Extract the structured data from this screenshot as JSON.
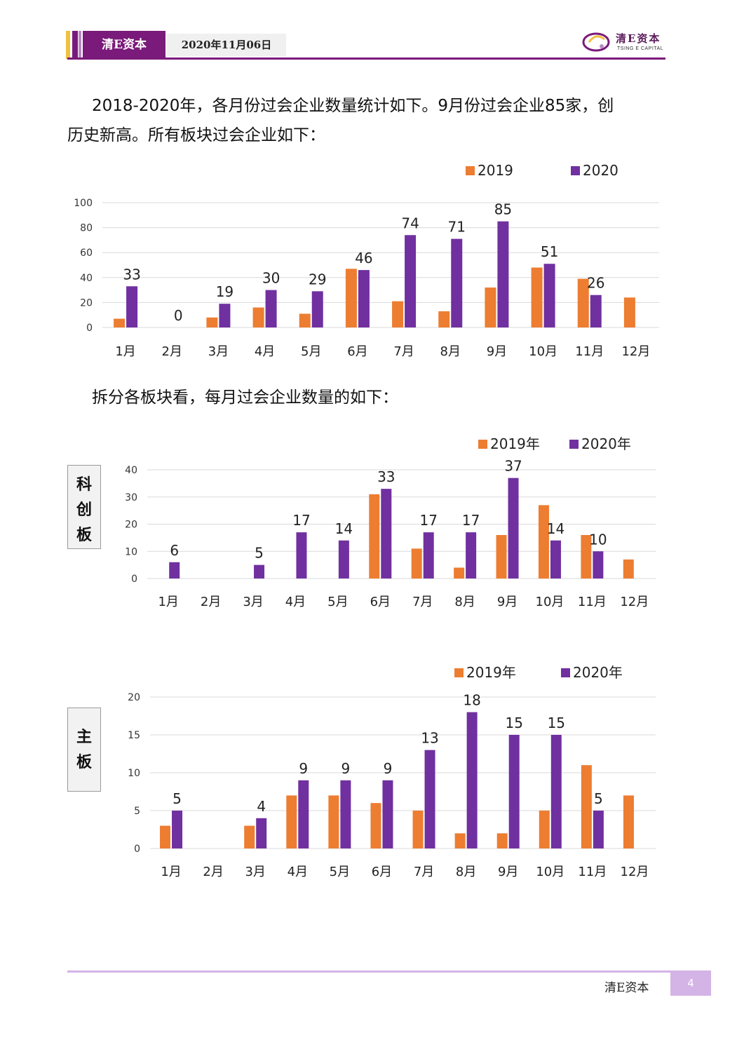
{
  "header": {
    "company": "清E资本",
    "date": "2020年11月06日",
    "logo_text": "清E资本",
    "logo_sub": "TSING E CAPITAL"
  },
  "intro": {
    "line1": "2018-2020年，各月份过会企业数量统计如下。9月份过会企业85家，创",
    "line2": "历史新高。所有板块过会企业如下："
  },
  "split_text": "拆分各板块看，每月过会企业数量的如下：",
  "side_tags": {
    "star": [
      "科",
      "创",
      "板"
    ],
    "main": [
      "主",
      "板"
    ]
  },
  "colors": {
    "y2019": "#ed7d31",
    "y2020": "#7030a0",
    "brand": "#7a1a7a",
    "footer_accent": "#d4b3e6"
  },
  "chart_data": [
    {
      "type": "bar",
      "categories": [
        "1月",
        "2月",
        "3月",
        "4月",
        "5月",
        "6月",
        "7月",
        "8月",
        "9月",
        "10月",
        "11月",
        "12月"
      ],
      "series": [
        {
          "name": "2019",
          "values": [
            7,
            0,
            8,
            16,
            11,
            47,
            21,
            13,
            32,
            48,
            39,
            24
          ]
        },
        {
          "name": "2020",
          "values": [
            33,
            0,
            19,
            30,
            29,
            46,
            74,
            71,
            85,
            51,
            26,
            null
          ]
        }
      ],
      "data_labels": [
        "33",
        "0",
        "19",
        "30",
        "29",
        "46",
        "74",
        "71",
        "85",
        "51",
        "26",
        ""
      ],
      "yticks": [
        0,
        20,
        40,
        60,
        80,
        100
      ],
      "ylim": [
        0,
        100
      ],
      "grid": true,
      "legend": "top-right",
      "title": "",
      "xlabel": "",
      "ylabel": ""
    },
    {
      "type": "bar",
      "categories": [
        "1月",
        "2月",
        "3月",
        "4月",
        "5月",
        "6月",
        "7月",
        "8月",
        "9月",
        "10月",
        "11月",
        "12月"
      ],
      "series": [
        {
          "name": "2019年",
          "values": [
            0,
            0,
            0,
            0,
            0,
            31,
            11,
            4,
            16,
            27,
            16,
            7
          ]
        },
        {
          "name": "2020年",
          "values": [
            6,
            0,
            5,
            17,
            14,
            33,
            17,
            17,
            37,
            14,
            10,
            null
          ]
        }
      ],
      "data_labels": [
        "6",
        "",
        "5",
        "17",
        "14",
        "33",
        "17",
        "17",
        "37",
        "14",
        "10",
        ""
      ],
      "yticks": [
        0,
        10,
        20,
        30,
        40
      ],
      "ylim": [
        0,
        40
      ],
      "grid": true,
      "legend": "top-right",
      "title": "",
      "xlabel": "",
      "ylabel": ""
    },
    {
      "type": "bar",
      "categories": [
        "1月",
        "2月",
        "3月",
        "4月",
        "5月",
        "6月",
        "7月",
        "8月",
        "9月",
        "10月",
        "11月",
        "12月"
      ],
      "series": [
        {
          "name": "2019年",
          "values": [
            3,
            0,
            3,
            7,
            7,
            6,
            5,
            2,
            2,
            5,
            11,
            7
          ]
        },
        {
          "name": "2020年",
          "values": [
            5,
            0,
            4,
            9,
            9,
            9,
            13,
            18,
            15,
            15,
            5,
            null
          ]
        }
      ],
      "data_labels": [
        "5",
        "",
        "4",
        "9",
        "9",
        "9",
        "13",
        "18",
        "15",
        "15",
        "5",
        ""
      ],
      "yticks": [
        0,
        5,
        10,
        15,
        20
      ],
      "ylim": [
        0,
        20
      ],
      "grid": true,
      "legend": "top-right",
      "title": "",
      "xlabel": "",
      "ylabel": ""
    }
  ],
  "footer": {
    "company": "清E资本",
    "page": "4"
  }
}
